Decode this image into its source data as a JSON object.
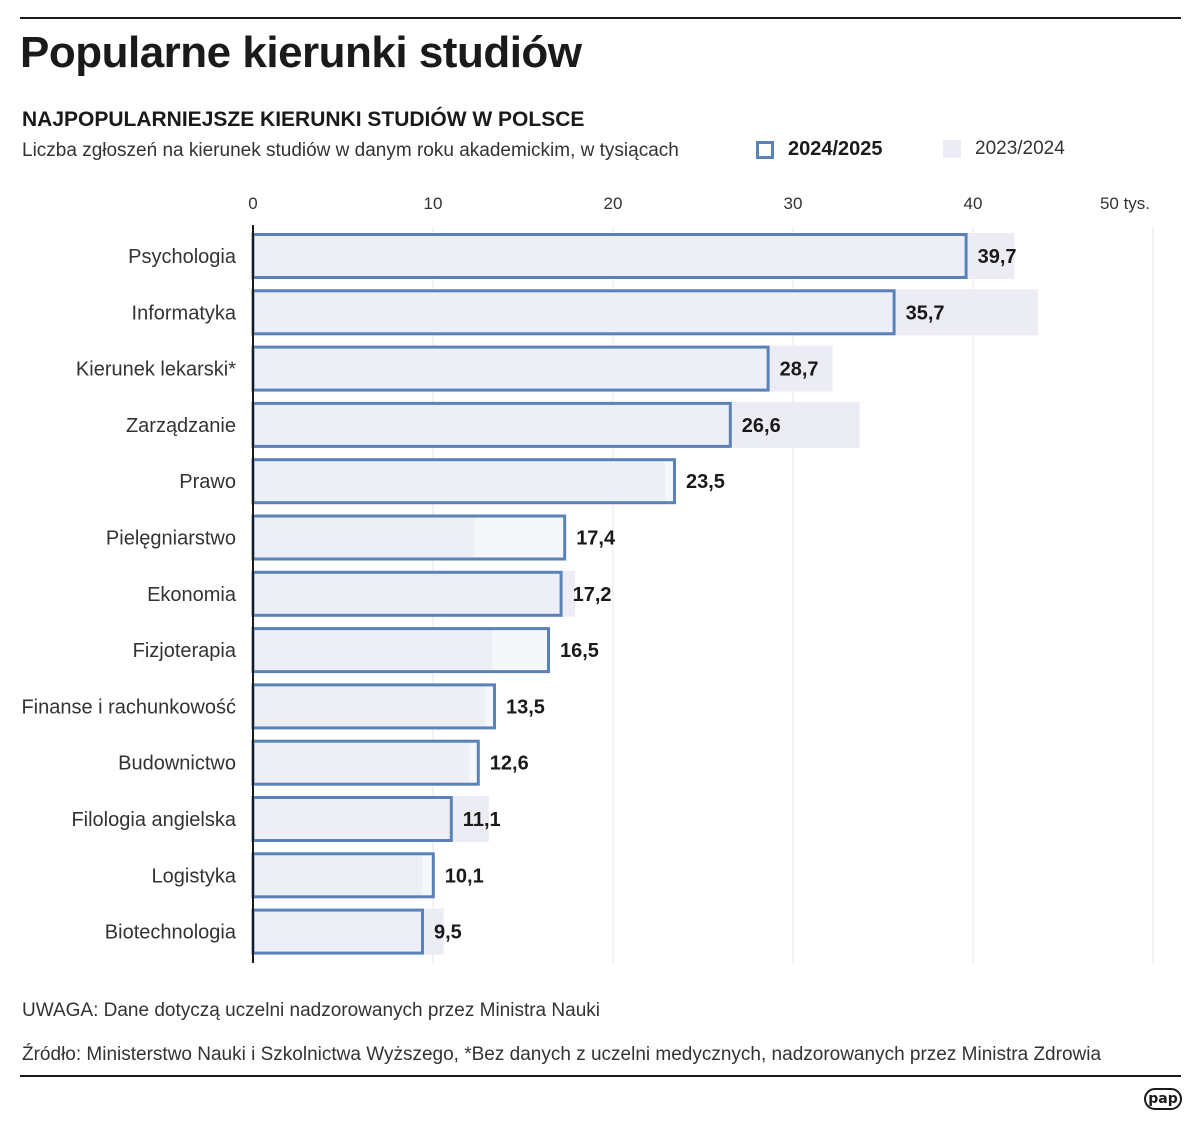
{
  "header": {
    "title": "Popularne kierunki studiów",
    "subtitle": "NAJPOPULARNIEJSZE KIERUNKI STUDIÓW W POLSCE",
    "description": "Liczba zgłoszeń na kierunek studiów w danym roku akademickim, w tysiącach"
  },
  "legend": {
    "current": "2024/2025",
    "previous": "2023/2024"
  },
  "colors": {
    "current_outline": "#5b82b8",
    "previous_fill": "#ececf4",
    "current_fill": "#f0f1f7",
    "axis": "#1a1a1a",
    "grid": "#e6e6ee"
  },
  "chart_data": {
    "type": "bar",
    "orientation": "horizontal",
    "categories": [
      "Psychologia",
      "Informatyka",
      "Kierunek lekarski*",
      "Zarządzanie",
      "Prawo",
      "Pielęgniarstwo",
      "Ekonomia",
      "Fizjoterapia",
      "Finanse i rachunkowość",
      "Budownictwo",
      "Filologia angielska",
      "Logistyka",
      "Biotechnologia"
    ],
    "series": [
      {
        "name": "2024/2025",
        "values": [
          39.7,
          35.7,
          28.7,
          26.6,
          23.5,
          17.4,
          17.2,
          16.5,
          13.5,
          12.6,
          11.1,
          10.1,
          9.5
        ]
      },
      {
        "name": "2023/2024",
        "values": [
          42.3,
          43.6,
          32.2,
          33.7,
          22.9,
          12.3,
          17.9,
          13.3,
          12.9,
          12.0,
          13.1,
          9.4,
          10.6
        ]
      }
    ],
    "data_labels": [
      "39,7",
      "35,7",
      "28,7",
      "26,6",
      "23,5",
      "17,4",
      "17,2",
      "16,5",
      "13,5",
      "12,6",
      "11,1",
      "10,1",
      "9,5"
    ],
    "xticks": [
      "0",
      "10",
      "20",
      "30",
      "40",
      "50 tys."
    ],
    "xtick_values": [
      0,
      10,
      20,
      30,
      40,
      50
    ],
    "xlim": [
      0,
      50
    ],
    "grid": true
  },
  "footer": {
    "note": "UWAGA: Dane dotyczą uczelni nadzorowanych przez Ministra Nauki",
    "source": "Źródło: Ministerstwo Nauki i Szkolnictwa Wyższego, *Bez danych z uczelni medycznych, nadzorowanych przez Ministra Zdrowia",
    "logo_text": "pap"
  }
}
